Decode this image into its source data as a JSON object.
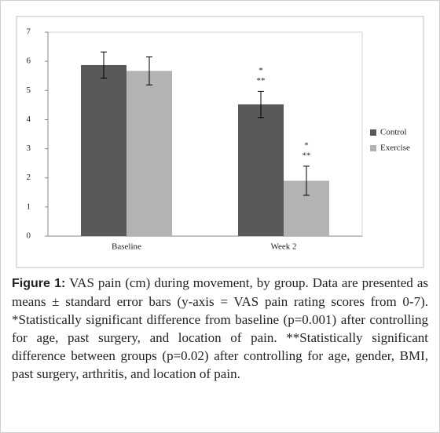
{
  "chart_data": {
    "type": "bar",
    "categories": [
      "Baseline",
      "Week 2"
    ],
    "series": [
      {
        "name": "Control",
        "color": "#595959",
        "values": [
          5.87,
          4.52
        ],
        "errors": [
          0.45,
          0.45
        ],
        "significance": [
          null,
          [
            "*",
            "**"
          ]
        ]
      },
      {
        "name": "Exercise",
        "color": "#b3b3b3",
        "values": [
          5.67,
          1.9
        ],
        "errors": [
          0.48,
          0.5
        ],
        "significance": [
          null,
          [
            "*",
            "**"
          ]
        ]
      }
    ],
    "ylim": [
      0,
      7
    ],
    "yticks": [
      0,
      1,
      2,
      3,
      4,
      5,
      6,
      7
    ],
    "grid": false,
    "legend": "right",
    "caption_label": "Figure 1:",
    "caption": "VAS pain (cm) during movement, by group. Data are presented as means ± standard error bars (y-axis = VAS pain rating scores from 0-7). *Statistically significant difference from baseline (p=0.001) after controlling for age, past surgery, and location of pain. **Statistically significant difference between groups (p=0.02) after controlling for age, gender, BMI, past surgery, arthritis, and location of pain."
  }
}
